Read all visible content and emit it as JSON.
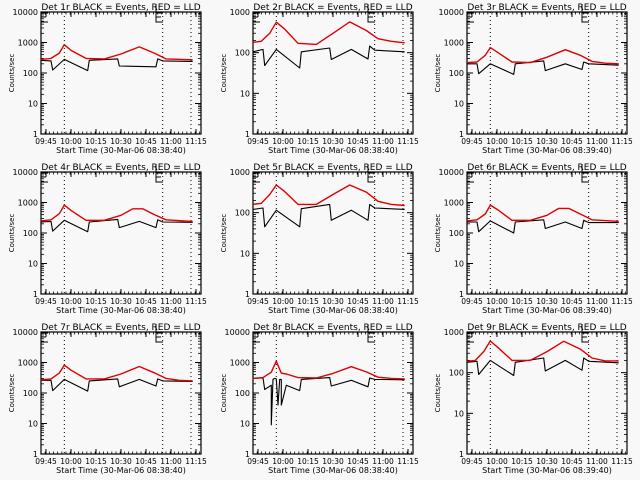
{
  "figure": {
    "background": "#f8f8f8",
    "event_color": "#000000",
    "lld_color": "#e00000"
  },
  "chart_data": [
    {
      "type": "line",
      "title": "Det 1r BLACK = Events, RED = LLD",
      "xlabel": "Start Time (30-Mar-06 08:38:40)",
      "ylabel": "Counts/sec",
      "yscale": "log",
      "ylim": [
        1,
        10000
      ],
      "ytick_labels": [
        "1",
        "10",
        "100",
        "1000",
        "10000"
      ],
      "xlim_minutes": [
        -3,
        93
      ],
      "xtick_labels": [
        "09:45",
        "10:00",
        "10:15",
        "10:30",
        "10:45",
        "11:00",
        "11:15"
      ],
      "vlines_minutes": [
        11,
        70,
        87
      ],
      "markers": [
        {
          "label": "E",
          "minute": -3
        },
        {
          "label": "E",
          "minute": 66
        }
      ],
      "series": [
        {
          "name": "Events",
          "color": "#000000",
          "x": [
            -3,
            3,
            4,
            11,
            25,
            26,
            43,
            44,
            66,
            67,
            70,
            88
          ],
          "y": [
            260,
            250,
            125,
            280,
            120,
            260,
            290,
            170,
            160,
            290,
            250,
            240
          ]
        },
        {
          "name": "LLD",
          "color": "#e00000",
          "x": [
            -3,
            3,
            8,
            11,
            15,
            24,
            35,
            45,
            56,
            65,
            72,
            88
          ],
          "y": [
            280,
            300,
            450,
            850,
            550,
            300,
            290,
            420,
            720,
            450,
            290,
            270
          ]
        }
      ]
    },
    {
      "type": "line",
      "title": "Det 2r BLACK = Events, RED = LLD",
      "xlabel": "Start Time (30-Mar-06 08:38:40)",
      "ylabel": "Counts/sec",
      "yscale": "log",
      "ylim": [
        1,
        1000
      ],
      "ytick_labels": [
        "1",
        "10",
        "100",
        "1000"
      ],
      "xlim_minutes": [
        -3,
        93
      ],
      "xtick_labels": [
        "09:45",
        "10:00",
        "10:15",
        "10:30",
        "10:45",
        "11:00",
        "11:15"
      ],
      "vlines_minutes": [
        11,
        70,
        87
      ],
      "markers": [
        {
          "label": "E",
          "minute": -3
        },
        {
          "label": "E",
          "minute": 66
        }
      ],
      "series": [
        {
          "name": "Events",
          "color": "#000000",
          "x": [
            -3,
            3,
            4,
            11,
            25,
            26,
            43,
            44,
            56,
            66,
            67,
            70,
            88
          ],
          "y": [
            105,
            120,
            48,
            120,
            42,
            105,
            130,
            68,
            120,
            70,
            145,
            115,
            105
          ]
        },
        {
          "name": "LLD",
          "color": "#e00000",
          "x": [
            -3,
            2,
            7,
            11,
            16,
            24,
            35,
            45,
            55,
            65,
            72,
            80,
            88
          ],
          "y": [
            180,
            190,
            300,
            560,
            380,
            170,
            160,
            300,
            570,
            350,
            220,
            190,
            175
          ]
        }
      ]
    },
    {
      "type": "line",
      "title": "Det 3r BLACK = Events, RED = LLD",
      "xlabel": "Start Time (30-Mar-06 08:39:40)",
      "ylabel": "Counts/sec",
      "yscale": "log",
      "ylim": [
        1,
        10000
      ],
      "ytick_labels": [
        "1",
        "10",
        "100",
        "1000",
        "10000"
      ],
      "xlim_minutes": [
        -3,
        93
      ],
      "xtick_labels": [
        "09:45",
        "10:00",
        "10:15",
        "10:30",
        "10:45",
        "11:00",
        "11:15"
      ],
      "vlines_minutes": [
        11,
        70,
        87
      ],
      "markers": [
        {
          "label": "E",
          "minute": -3
        },
        {
          "label": "E",
          "minute": 66
        }
      ],
      "series": [
        {
          "name": "Events",
          "color": "#000000",
          "x": [
            -3,
            3,
            4,
            11,
            25,
            26,
            43,
            44,
            56,
            66,
            67,
            70,
            88
          ],
          "y": [
            200,
            200,
            95,
            200,
            90,
            200,
            250,
            120,
            200,
            130,
            230,
            200,
            180
          ]
        },
        {
          "name": "LLD",
          "color": "#e00000",
          "x": [
            -3,
            3,
            8,
            11,
            16,
            24,
            35,
            45,
            56,
            65,
            72,
            80,
            88
          ],
          "y": [
            220,
            230,
            380,
            680,
            450,
            230,
            220,
            330,
            580,
            380,
            240,
            210,
            200
          ]
        }
      ]
    },
    {
      "type": "line",
      "title": "Det 4r BLACK = Events, RED = LLD",
      "xlabel": "Start Time (30-Mar-06 08:38:40)",
      "ylabel": "Counts/sec",
      "yscale": "log",
      "ylim": [
        1,
        10000
      ],
      "ytick_labels": [
        "1",
        "10",
        "100",
        "1000",
        "10000"
      ],
      "xlim_minutes": [
        -3,
        93
      ],
      "xtick_labels": [
        "09:45",
        "10:00",
        "10:15",
        "10:30",
        "10:45",
        "11:00",
        "11:15"
      ],
      "vlines_minutes": [
        11,
        70,
        87
      ],
      "markers": [
        {
          "label": "E",
          "minute": -3
        },
        {
          "label": "E",
          "minute": 66
        }
      ],
      "series": [
        {
          "name": "Events",
          "color": "#000000",
          "x": [
            -3,
            3,
            4,
            11,
            25,
            26,
            43,
            44,
            56,
            66,
            67,
            70,
            88
          ],
          "y": [
            230,
            240,
            115,
            260,
            110,
            230,
            280,
            150,
            240,
            150,
            270,
            230,
            225
          ]
        },
        {
          "name": "LLD",
          "color": "#e00000",
          "x": [
            -3,
            3,
            8,
            11,
            15,
            24,
            35,
            45,
            52,
            58,
            65,
            72,
            88
          ],
          "y": [
            250,
            270,
            430,
            820,
            550,
            260,
            260,
            380,
            620,
            620,
            400,
            270,
            240
          ]
        }
      ]
    },
    {
      "type": "line",
      "title": "Det 5r BLACK = Events, RED = LLD",
      "xlabel": "Start Time (30-Mar-06 08:38:40)",
      "ylabel": "Counts/sec",
      "yscale": "log",
      "ylim": [
        1,
        1000
      ],
      "ytick_labels": [
        "1",
        "10",
        "100",
        "1000"
      ],
      "xlim_minutes": [
        -3,
        93
      ],
      "xtick_labels": [
        "09:45",
        "10:00",
        "10:15",
        "10:30",
        "10:45",
        "11:00",
        "11:15"
      ],
      "vlines_minutes": [
        11,
        70,
        87
      ],
      "markers": [
        {
          "label": "E",
          "minute": -3
        },
        {
          "label": "E",
          "minute": 66
        }
      ],
      "series": [
        {
          "name": "Events",
          "color": "#000000",
          "x": [
            -3,
            3,
            4,
            11,
            25,
            26,
            43,
            44,
            56,
            66,
            67,
            70,
            88
          ],
          "y": [
            120,
            130,
            45,
            115,
            45,
            125,
            160,
            65,
            115,
            65,
            160,
            130,
            120
          ]
        },
        {
          "name": "LLD",
          "color": "#e00000",
          "x": [
            -3,
            2,
            7,
            11,
            16,
            24,
            35,
            45,
            55,
            65,
            72,
            80,
            88
          ],
          "y": [
            160,
            170,
            280,
            480,
            330,
            160,
            160,
            280,
            480,
            320,
            190,
            160,
            150
          ]
        }
      ]
    },
    {
      "type": "line",
      "title": "Det 6r BLACK = Events, RED = LLD",
      "xlabel": "Start Time (30-Mar-06 08:39:40)",
      "ylabel": "Counts/sec",
      "yscale": "log",
      "ylim": [
        1,
        10000
      ],
      "ytick_labels": [
        "1",
        "10",
        "100",
        "1000",
        "10000"
      ],
      "xlim_minutes": [
        -3,
        93
      ],
      "xtick_labels": [
        "09:45",
        "10:00",
        "10:15",
        "10:30",
        "10:45",
        "11:00",
        "11:15"
      ],
      "vlines_minutes": [
        11,
        70,
        87
      ],
      "markers": [
        {
          "label": "E",
          "minute": -3
        },
        {
          "label": "E",
          "minute": 66
        }
      ],
      "series": [
        {
          "name": "Events",
          "color": "#000000",
          "x": [
            -3,
            3,
            4,
            11,
            25,
            26,
            43,
            44,
            56,
            66,
            67,
            70,
            88
          ],
          "y": [
            230,
            230,
            110,
            250,
            100,
            230,
            270,
            140,
            230,
            140,
            260,
            220,
            220
          ]
        },
        {
          "name": "LLD",
          "color": "#e00000",
          "x": [
            -3,
            3,
            8,
            11,
            16,
            24,
            35,
            45,
            52,
            58,
            65,
            72,
            88
          ],
          "y": [
            250,
            270,
            420,
            820,
            550,
            260,
            260,
            380,
            640,
            640,
            420,
            270,
            240
          ]
        }
      ]
    },
    {
      "type": "line",
      "title": "Det 7r BLACK = Events, RED = LLD",
      "xlabel": "Start Time (30-Mar-06 08:38:40)",
      "ylabel": "Counts/sec",
      "yscale": "log",
      "ylim": [
        1,
        10000
      ],
      "ytick_labels": [
        "1",
        "10",
        "100",
        "1000",
        "10000"
      ],
      "xlim_minutes": [
        -3,
        93
      ],
      "xtick_labels": [
        "09:45",
        "10:00",
        "10:15",
        "10:30",
        "10:45",
        "11:00",
        "11:15"
      ],
      "vlines_minutes": [
        11,
        70,
        87
      ],
      "markers": [
        {
          "label": "E",
          "minute": -3
        },
        {
          "label": "E",
          "minute": 66
        }
      ],
      "series": [
        {
          "name": "Events",
          "color": "#000000",
          "x": [
            -3,
            3,
            4,
            11,
            25,
            26,
            43,
            44,
            56,
            66,
            67,
            70,
            88
          ],
          "y": [
            260,
            260,
            120,
            280,
            115,
            250,
            290,
            160,
            280,
            170,
            290,
            250,
            240
          ]
        },
        {
          "name": "LLD",
          "color": "#e00000",
          "x": [
            -3,
            3,
            8,
            11,
            15,
            24,
            35,
            45,
            56,
            65,
            72,
            80,
            88
          ],
          "y": [
            270,
            290,
            450,
            820,
            560,
            290,
            290,
            420,
            740,
            460,
            300,
            260,
            250
          ]
        }
      ]
    },
    {
      "type": "line",
      "title": "Det 8r BLACK = Events, RED = LLD",
      "xlabel": "Start Time (30-Mar-06 08:38:40)",
      "ylabel": "Counts/sec",
      "yscale": "log",
      "ylim": [
        1,
        10000
      ],
      "ytick_labels": [
        "1",
        "10",
        "100",
        "1000",
        "10000"
      ],
      "xlim_minutes": [
        -3,
        93
      ],
      "xtick_labels": [
        "09:45",
        "10:00",
        "10:15",
        "10:30",
        "10:45",
        "11:00",
        "11:15"
      ],
      "vlines_minutes": [
        11,
        70,
        87
      ],
      "markers": [
        {
          "label": "E",
          "minute": -3
        },
        {
          "label": "E",
          "minute": 66
        }
      ],
      "series": [
        {
          "name": "Events",
          "color": "#000000",
          "x": [
            -3,
            3,
            4,
            8,
            8,
            9,
            10,
            11,
            12,
            13,
            14,
            14,
            17,
            17,
            25,
            26,
            43,
            44,
            56,
            66,
            67,
            70,
            88
          ],
          "y": [
            300,
            310,
            130,
            180,
            9,
            280,
            300,
            290,
            40,
            280,
            280,
            40,
            180,
            180,
            120,
            280,
            320,
            170,
            260,
            160,
            310,
            280,
            270
          ]
        },
        {
          "name": "LLD",
          "color": "#e00000",
          "x": [
            -3,
            3,
            8,
            11,
            14,
            17,
            24,
            35,
            45,
            56,
            65,
            72,
            80,
            88
          ],
          "y": [
            300,
            320,
            480,
            1100,
            450,
            420,
            320,
            310,
            440,
            730,
            490,
            330,
            300,
            290
          ]
        }
      ]
    },
    {
      "type": "line",
      "title": "Det 9r BLACK = Events, RED = LLD",
      "xlabel": "Start Time (30-Mar-06 08:39:40)",
      "ylabel": "Counts/sec",
      "yscale": "log",
      "ylim": [
        1,
        1000
      ],
      "ytick_labels": [
        "1",
        "10",
        "100",
        "1000"
      ],
      "xlim_minutes": [
        -3,
        93
      ],
      "xtick_labels": [
        "09:45",
        "10:00",
        "10:15",
        "10:30",
        "10:45",
        "11:00",
        "11:15"
      ],
      "vlines_minutes": [
        11,
        70,
        87
      ],
      "markers": [
        {
          "label": "E",
          "minute": -3
        },
        {
          "label": "E",
          "minute": 66
        }
      ],
      "series": [
        {
          "name": "Events",
          "color": "#000000",
          "x": [
            -3,
            3,
            4,
            11,
            25,
            26,
            43,
            44,
            56,
            66,
            67,
            70,
            88
          ],
          "y": [
            180,
            190,
            90,
            200,
            85,
            180,
            230,
            110,
            200,
            115,
            230,
            190,
            175
          ]
        },
        {
          "name": "LLD",
          "color": "#e00000",
          "x": [
            -3,
            2,
            7,
            11,
            16,
            24,
            35,
            45,
            55,
            65,
            72,
            80,
            88
          ],
          "y": [
            190,
            200,
            330,
            600,
            400,
            200,
            200,
            330,
            590,
            380,
            230,
            195,
            195
          ]
        }
      ]
    }
  ]
}
